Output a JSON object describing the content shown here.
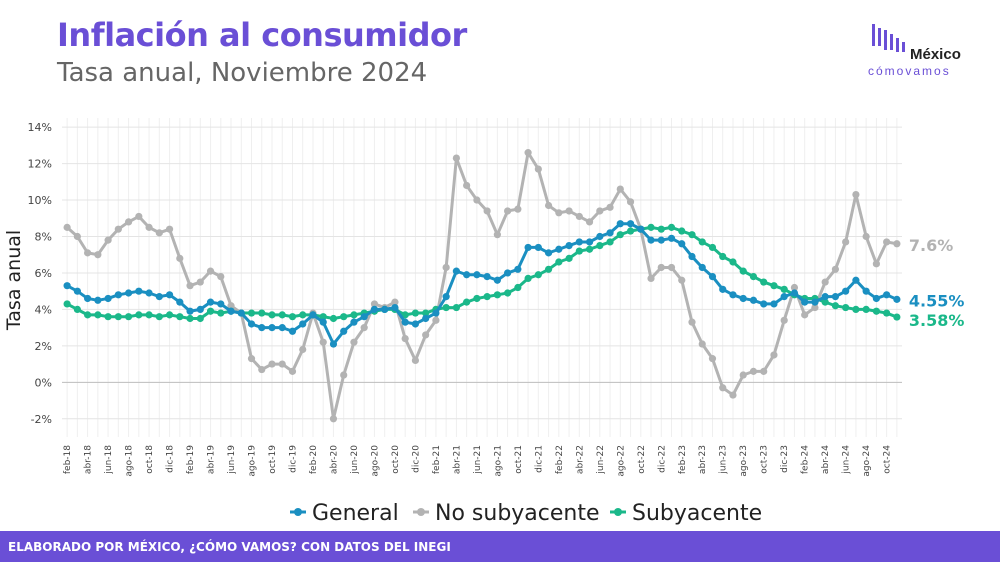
{
  "header": {
    "title": "Inflación al consumidor",
    "subtitle": "Tasa anual, Noviembre 2024"
  },
  "logo": {
    "line1": "México",
    "line2": "cómovamos"
  },
  "footer": {
    "text": "ELABORADO POR MÉXICO, ¿CÓMO VAMOS? CON DATOS DEL INEGI"
  },
  "colors": {
    "general": "#1a8fc1",
    "no_subyacente": "#b3b3b3",
    "subyacente": "#1bb88a",
    "brand": "#6a4fd6"
  },
  "chart_data": {
    "type": "line",
    "ylabel": "Tasa anual",
    "xlabel": "",
    "ylim": [
      -3,
      14.5
    ],
    "yticks": [
      -2,
      0,
      2,
      4,
      6,
      8,
      10,
      12,
      14
    ],
    "ytick_labels": [
      "-2%",
      "0%",
      "2%",
      "4%",
      "6%",
      "8%",
      "10%",
      "12%",
      "14%"
    ],
    "grid": true,
    "legend_position": "bottom",
    "categories": [
      "feb-18",
      "mar-18",
      "abr-18",
      "may-18",
      "jun-18",
      "jul-18",
      "ago-18",
      "sep-18",
      "oct-18",
      "nov-18",
      "dic-18",
      "ene-19",
      "feb-19",
      "mar-19",
      "abr-19",
      "may-19",
      "jun-19",
      "jul-19",
      "ago-19",
      "sep-19",
      "oct-19",
      "nov-19",
      "dic-19",
      "ene-20",
      "feb-20",
      "mar-20",
      "abr-20",
      "may-20",
      "jun-20",
      "jul-20",
      "ago-20",
      "sep-20",
      "oct-20",
      "nov-20",
      "dic-20",
      "ene-21",
      "feb-21",
      "mar-21",
      "abr-21",
      "may-21",
      "jun-21",
      "jul-21",
      "ago-21",
      "sep-21",
      "oct-21",
      "nov-21",
      "dic-21",
      "ene-22",
      "feb-22",
      "mar-22",
      "abr-22",
      "may-22",
      "jun-22",
      "jul-22",
      "ago-22",
      "sep-22",
      "oct-22",
      "nov-22",
      "dic-22",
      "ene-23",
      "feb-23",
      "mar-23",
      "abr-23",
      "may-23",
      "jun-23",
      "jul-23",
      "ago-23",
      "sep-23",
      "oct-23",
      "nov-23",
      "dic-23",
      "ene-24",
      "feb-24",
      "mar-24",
      "abr-24",
      "may-24",
      "jun-24",
      "jul-24",
      "ago-24",
      "sep-24",
      "oct-24",
      "nov-24"
    ],
    "xtick_labels": [
      "feb-18",
      "abr-18",
      "jun-18",
      "ago-18",
      "oct-18",
      "dic-18",
      "feb-19",
      "abr-19",
      "jun-19",
      "ago-19",
      "oct-19",
      "dic-19",
      "feb-20",
      "abr-20",
      "jun-20",
      "ago-20",
      "oct-20",
      "dic-20",
      "feb-21",
      "abr-21",
      "jun-21",
      "ago-21",
      "oct-21",
      "dic-21",
      "feb-22",
      "abr-22",
      "jun-22",
      "ago-22",
      "oct-22",
      "dic-22",
      "feb-23",
      "abr-23",
      "jun-23",
      "ago-23",
      "oct-23",
      "dic-23",
      "feb-24",
      "abr-24",
      "jun-24",
      "ago-24",
      "oct-24"
    ],
    "series": [
      {
        "name": "General",
        "color": "#1a8fc1",
        "end_label": "4.55%",
        "values": [
          5.3,
          5.0,
          4.6,
          4.5,
          4.6,
          4.8,
          4.9,
          5.0,
          4.9,
          4.7,
          4.8,
          4.4,
          3.9,
          4.0,
          4.4,
          4.3,
          3.9,
          3.8,
          3.2,
          3.0,
          3.0,
          3.0,
          2.8,
          3.2,
          3.7,
          3.3,
          2.1,
          2.8,
          3.3,
          3.6,
          4.0,
          4.0,
          4.1,
          3.3,
          3.2,
          3.5,
          3.8,
          4.7,
          6.1,
          5.9,
          5.9,
          5.8,
          5.6,
          6.0,
          6.2,
          7.4,
          7.4,
          7.1,
          7.3,
          7.5,
          7.7,
          7.7,
          8.0,
          8.2,
          8.7,
          8.7,
          8.4,
          7.8,
          7.8,
          7.9,
          7.6,
          6.9,
          6.3,
          5.8,
          5.1,
          4.8,
          4.6,
          4.5,
          4.3,
          4.3,
          4.7,
          4.9,
          4.4,
          4.4,
          4.7,
          4.7,
          5.0,
          5.6,
          5.0,
          4.6,
          4.8,
          4.55
        ]
      },
      {
        "name": "No subyacente",
        "color": "#b3b3b3",
        "end_label": "7.6%",
        "values": [
          8.5,
          8.0,
          7.1,
          7.0,
          7.8,
          8.4,
          8.8,
          9.1,
          8.5,
          8.2,
          8.4,
          6.8,
          5.3,
          5.5,
          6.1,
          5.8,
          4.2,
          3.8,
          1.3,
          0.7,
          1.0,
          1.0,
          0.6,
          1.8,
          3.8,
          2.2,
          -2.0,
          0.4,
          2.2,
          3.0,
          4.3,
          4.1,
          4.4,
          2.4,
          1.2,
          2.6,
          3.4,
          6.3,
          12.3,
          10.8,
          10.0,
          9.4,
          8.1,
          9.4,
          9.5,
          12.6,
          11.7,
          9.7,
          9.3,
          9.4,
          9.1,
          8.8,
          9.4,
          9.6,
          10.6,
          9.9,
          8.4,
          5.7,
          6.3,
          6.3,
          5.6,
          3.3,
          2.1,
          1.3,
          -0.3,
          -0.7,
          0.4,
          0.6,
          0.6,
          1.5,
          3.4,
          5.2,
          3.7,
          4.1,
          5.5,
          6.2,
          7.7,
          10.3,
          8.0,
          6.5,
          7.7,
          7.6
        ]
      },
      {
        "name": "Subyacente",
        "color": "#1bb88a",
        "end_label": "3.58%",
        "values": [
          4.3,
          4.0,
          3.7,
          3.7,
          3.6,
          3.6,
          3.6,
          3.7,
          3.7,
          3.6,
          3.7,
          3.6,
          3.5,
          3.5,
          3.9,
          3.8,
          3.9,
          3.8,
          3.8,
          3.8,
          3.7,
          3.7,
          3.6,
          3.7,
          3.7,
          3.6,
          3.5,
          3.6,
          3.7,
          3.8,
          3.9,
          4.0,
          4.0,
          3.7,
          3.8,
          3.8,
          4.0,
          4.1,
          4.1,
          4.4,
          4.6,
          4.7,
          4.8,
          4.9,
          5.2,
          5.7,
          5.9,
          6.2,
          6.6,
          6.8,
          7.2,
          7.3,
          7.5,
          7.7,
          8.1,
          8.3,
          8.4,
          8.5,
          8.4,
          8.5,
          8.3,
          8.1,
          7.7,
          7.4,
          6.9,
          6.6,
          6.1,
          5.8,
          5.5,
          5.3,
          5.1,
          4.8,
          4.6,
          4.6,
          4.4,
          4.2,
          4.1,
          4.0,
          4.0,
          3.9,
          3.8,
          3.58
        ]
      }
    ]
  }
}
